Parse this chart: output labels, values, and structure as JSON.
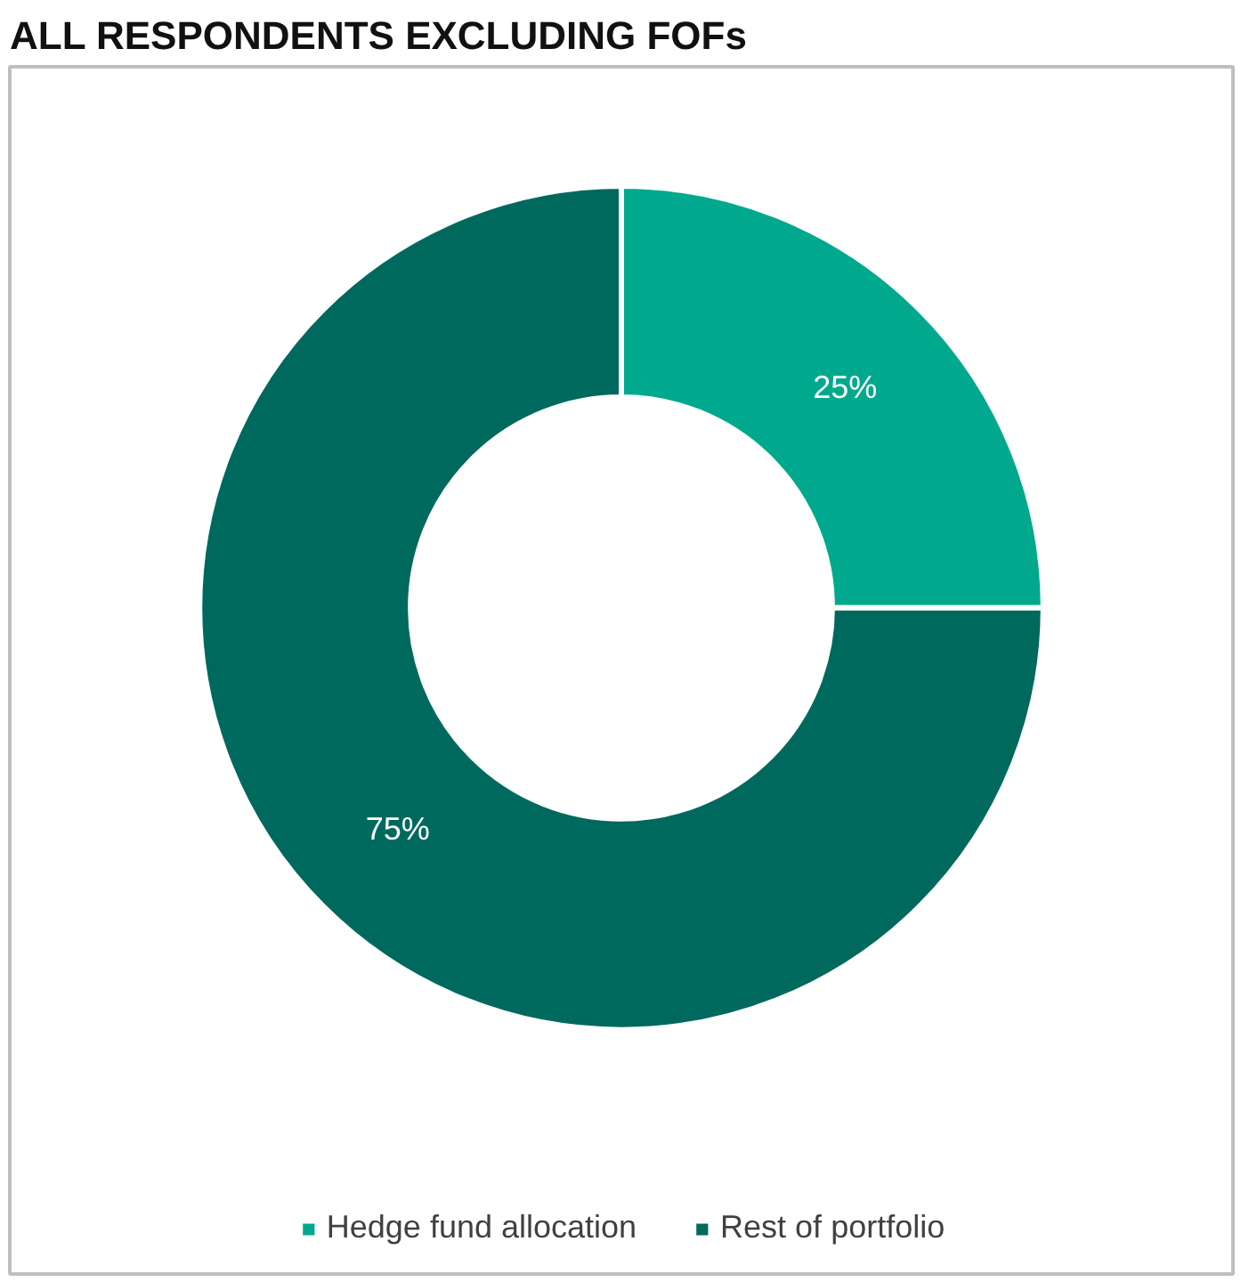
{
  "chart_data": {
    "type": "donut",
    "title": "ALL RESPONDENTS EXCLUDING FOFs",
    "categories": [
      "Hedge fund allocation",
      "Rest of portfolio"
    ],
    "values": [
      25,
      75
    ],
    "colors": [
      "#00a98e",
      "#00695e"
    ],
    "value_labels": [
      "25%",
      "75%"
    ],
    "legend": "bottom"
  }
}
